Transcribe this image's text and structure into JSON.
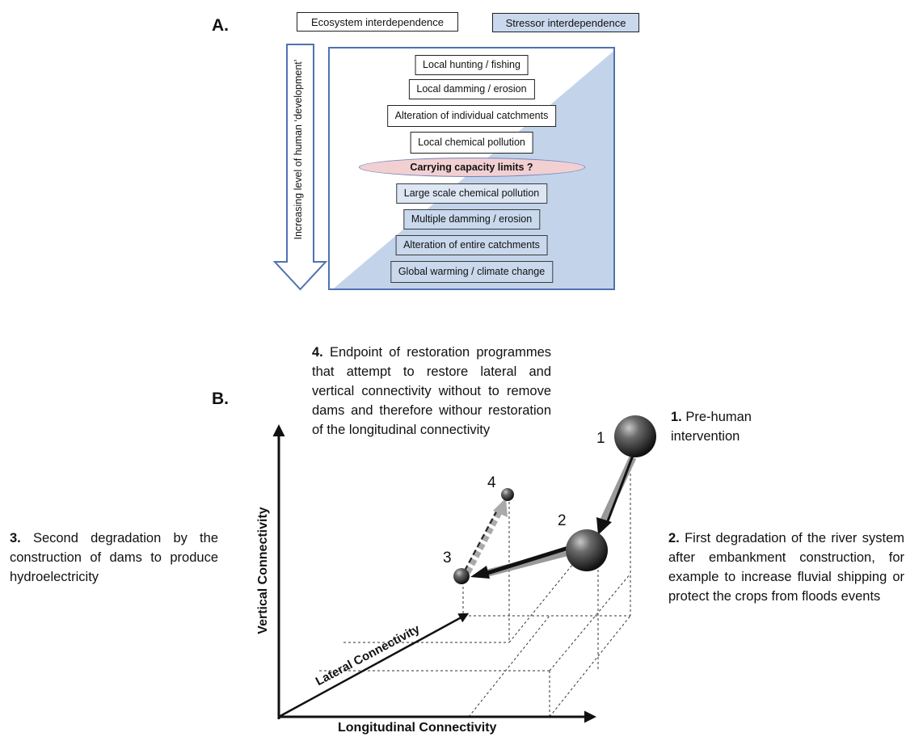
{
  "panel_a": {
    "label": "A.",
    "legend": {
      "ecosystem": "Ecosystem interdependence",
      "stressor": "Stressor interdependence",
      "stressor_color": "#c9d8ec"
    },
    "arrow_label": "Increasing level of human ‘development’",
    "stressors": [
      "Local hunting  / fishing",
      "Local damming  / erosion",
      "Alteration of individual  catchments",
      "Local chemical pollution",
      "Carrying capacity limits ?",
      "Large scale chemical pollution",
      "Multiple damming  / erosion",
      "Alteration of entire catchments",
      "Global warming  / climate change"
    ]
  },
  "panel_b": {
    "label": "B.",
    "axes": {
      "x": "Longitudinal Connectivity",
      "y": "Vertical Connectivity",
      "z": "Lateral Connectivity"
    },
    "point_labels": [
      "1",
      "2",
      "3",
      "4"
    ],
    "notes": {
      "n1_num": "1.",
      "n1_text": " Pre-human intervention",
      "n2_num": "2.",
      "n2_text": " First degradation of the river system after embankment construction, for example to increase fluvial shipping or protect the crops from floods events",
      "n3_num": "3.",
      "n3_text": " Second degradation by the construction of dams to produce hydroelectricity",
      "n4_num": "4.",
      "n4_text": " Endpoint of restoration programmes that attempt to restore lateral and vertical connectivity without to remove dams and therefore withour restoration of the longitudinal connectivity"
    }
  }
}
